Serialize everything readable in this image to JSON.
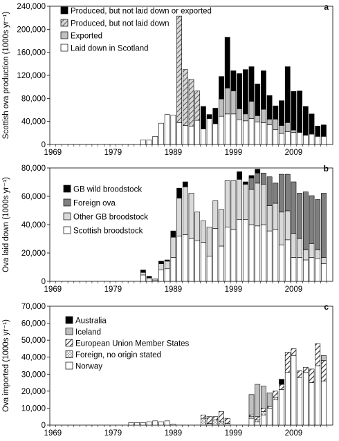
{
  "chart_data": [
    {
      "panel": "a",
      "type": "bar",
      "stacked": true,
      "ylabel": "Scottish ova production (1000s yr⁻¹)",
      "ylim": [
        0,
        240000
      ],
      "yticks": [
        "0",
        "40,000",
        "80,000",
        "120,000",
        "160,000",
        "200,000",
        "240,000"
      ],
      "xticks": [
        "1969",
        "1979",
        "1989",
        "1999",
        "2009"
      ],
      "legend_position": "top-left",
      "categories": [
        1969,
        1970,
        1971,
        1972,
        1973,
        1974,
        1975,
        1976,
        1977,
        1978,
        1979,
        1980,
        1981,
        1982,
        1983,
        1984,
        1985,
        1986,
        1987,
        1988,
        1989,
        1990,
        1991,
        1992,
        1993,
        1994,
        1995,
        1996,
        1997,
        1998,
        1999,
        2000,
        2001,
        2002,
        2003,
        2004,
        2005,
        2006,
        2007,
        2008,
        2009,
        2010,
        2011,
        2012,
        2013,
        2014
      ],
      "series": [
        {
          "name": "Laid down in Scotland",
          "style": "white",
          "values": [
            0,
            0,
            0,
            0,
            0,
            0,
            0,
            0,
            0,
            0,
            0,
            0,
            0,
            0,
            0,
            8000,
            8000,
            14000,
            37000,
            52000,
            51000,
            38000,
            33000,
            32000,
            42000,
            27000,
            45000,
            36000,
            49000,
            53000,
            53000,
            43000,
            41000,
            45000,
            39000,
            38000,
            34000,
            26000,
            19000,
            22000,
            21000,
            21000,
            16000,
            18000,
            14000,
            14000
          ]
        },
        {
          "name": "Exported",
          "style": "gray",
          "values": [
            0,
            0,
            0,
            0,
            0,
            0,
            0,
            0,
            0,
            0,
            0,
            0,
            0,
            0,
            0,
            0,
            0,
            0,
            0,
            0,
            0,
            0,
            0,
            0,
            0,
            0,
            0,
            0,
            30000,
            45000,
            40000,
            19000,
            12000,
            30000,
            11000,
            23000,
            10000,
            18000,
            14000,
            16000,
            4000,
            0,
            0,
            0,
            0,
            0
          ]
        },
        {
          "name": "Produced, but not laid down",
          "style": "hatched",
          "values": [
            0,
            0,
            0,
            0,
            0,
            0,
            0,
            0,
            0,
            0,
            0,
            0,
            0,
            0,
            0,
            0,
            0,
            0,
            0,
            0,
            0,
            185000,
            97000,
            81000,
            51000,
            0,
            0,
            0,
            0,
            0,
            0,
            0,
            0,
            0,
            0,
            0,
            0,
            0,
            0,
            0,
            0,
            0,
            0,
            0,
            0,
            0
          ]
        },
        {
          "name": "Produced, but not laid down or exported",
          "style": "black",
          "values": [
            0,
            0,
            0,
            0,
            0,
            0,
            0,
            0,
            0,
            0,
            0,
            0,
            0,
            0,
            0,
            0,
            0,
            0,
            0,
            0,
            0,
            0,
            0,
            0,
            0,
            39000,
            7000,
            27000,
            39000,
            88000,
            35000,
            61000,
            77000,
            60000,
            55000,
            67000,
            41000,
            23000,
            43000,
            97000,
            67000,
            72000,
            50000,
            35000,
            18000,
            20000
          ]
        }
      ]
    },
    {
      "panel": "b",
      "type": "bar",
      "stacked": true,
      "ylabel": "Ova laid down (1000s yr⁻¹)",
      "ylim": [
        0,
        90000
      ],
      "yticks": [
        "0",
        "20,000",
        "40,000",
        "60,000",
        "80,000"
      ],
      "xticks": [
        "1969",
        "1979",
        "1989",
        "1999",
        "2009"
      ],
      "legend_position": "middle-left",
      "categories": [
        1969,
        1970,
        1971,
        1972,
        1973,
        1974,
        1975,
        1976,
        1977,
        1978,
        1979,
        1980,
        1981,
        1982,
        1983,
        1984,
        1985,
        1986,
        1987,
        1988,
        1989,
        1990,
        1991,
        1992,
        1993,
        1994,
        1995,
        1996,
        1997,
        1998,
        1999,
        2000,
        2001,
        2002,
        2003,
        2004,
        2005,
        2006,
        2007,
        2008,
        2009,
        2010,
        2011,
        2012,
        2013,
        2014
      ],
      "series": [
        {
          "name": "Scottish broodstock",
          "style": "white",
          "values": [
            0,
            0,
            0,
            0,
            0,
            0,
            0,
            0,
            0,
            0,
            0,
            0,
            0,
            0,
            0,
            5000,
            2000,
            1000,
            9000,
            10000,
            19000,
            36000,
            37000,
            34000,
            32000,
            31000,
            20000,
            42000,
            28000,
            43000,
            41000,
            49000,
            49000,
            45000,
            44000,
            45000,
            40000,
            41000,
            29000,
            33000,
            19000,
            19000,
            17000,
            19000,
            18000,
            14000
          ]
        },
        {
          "name": "Other GB broodstock",
          "style": "light",
          "values": [
            0,
            0,
            0,
            0,
            0,
            0,
            0,
            0,
            0,
            0,
            0,
            0,
            0,
            0,
            0,
            2000,
            1000,
            1000,
            5000,
            6000,
            16000,
            30000,
            38000,
            36000,
            23000,
            17000,
            23000,
            22000,
            29000,
            37000,
            39000,
            32000,
            28000,
            28000,
            34000,
            32000,
            20000,
            21000,
            26000,
            23000,
            19000,
            15000,
            8000,
            11000,
            7000,
            5000
          ]
        },
        {
          "name": "Foreign ova",
          "style": "dark",
          "values": [
            0,
            0,
            0,
            0,
            0,
            0,
            0,
            0,
            0,
            0,
            0,
            0,
            0,
            0,
            0,
            0,
            0,
            0,
            0,
            0,
            0,
            0,
            0,
            0,
            0,
            0,
            0,
            0,
            0,
            0,
            0,
            0,
            0,
            9000,
            8000,
            9000,
            23000,
            16000,
            30000,
            29000,
            41000,
            36000,
            46000,
            38000,
            40000,
            51000
          ]
        },
        {
          "name": "GB wild broodstock",
          "style": "black",
          "values": [
            0,
            0,
            0,
            0,
            0,
            0,
            0,
            0,
            0,
            0,
            0,
            0,
            0,
            0,
            0,
            2000,
            1000,
            0,
            2000,
            1000,
            5000,
            8000,
            4000,
            0,
            0,
            0,
            0,
            0,
            0,
            0,
            0,
            6000,
            2000,
            2000,
            3000,
            0,
            0,
            0,
            0,
            0,
            0,
            0,
            0,
            0,
            0,
            0
          ]
        }
      ]
    },
    {
      "panel": "c",
      "type": "bar",
      "stacked": true,
      "ylabel": "Ova imported (1000s yr⁻¹)",
      "ylim": [
        0,
        70000
      ],
      "yticks": [
        "0",
        "10,000",
        "20,000",
        "30,000",
        "40,000",
        "50,000",
        "60,000",
        "70,000"
      ],
      "xticks": [
        "1969",
        "1979",
        "1989",
        "1999",
        "2009"
      ],
      "legend_position": "top-left",
      "categories": [
        1969,
        1970,
        1971,
        1972,
        1973,
        1974,
        1975,
        1976,
        1977,
        1978,
        1979,
        1980,
        1981,
        1982,
        1983,
        1984,
        1985,
        1986,
        1987,
        1988,
        1989,
        1990,
        1991,
        1992,
        1993,
        1994,
        1995,
        1996,
        1997,
        1998,
        1999,
        2000,
        2001,
        2002,
        2003,
        2004,
        2005,
        2006,
        2007,
        2008,
        2009,
        2010,
        2011,
        2012,
        2013,
        2014
      ],
      "series": [
        {
          "name": "Norway",
          "style": "white",
          "values": [
            0,
            0,
            0,
            0,
            0,
            0,
            0,
            0,
            0,
            0,
            0,
            0,
            0,
            1500,
            1500,
            1500,
            2000,
            2500,
            2000,
            2500,
            500,
            0,
            0,
            0,
            0,
            0,
            0,
            0,
            0,
            0,
            0,
            0,
            0,
            4000,
            2000,
            6000,
            10000,
            15000,
            21000,
            31000,
            41000,
            28000,
            31000,
            25000,
            35000,
            26000
          ]
        },
        {
          "name": "Foreign, no origin stated",
          "style": "dotted",
          "values": [
            0,
            0,
            0,
            0,
            0,
            0,
            0,
            0,
            0,
            0,
            0,
            0,
            0,
            0,
            0,
            0,
            0,
            0,
            0,
            0,
            0,
            0,
            0,
            0,
            0,
            4000,
            1000,
            3000,
            2000,
            1000,
            0,
            0,
            0,
            1000,
            1000,
            2000,
            0,
            1000,
            0,
            0,
            0,
            0,
            0,
            0,
            0,
            0
          ]
        },
        {
          "name": "European Union Member States",
          "style": "hatched",
          "values": [
            0,
            0,
            0,
            0,
            0,
            0,
            0,
            0,
            0,
            0,
            0,
            0,
            0,
            0,
            0,
            0,
            0,
            0,
            0,
            0,
            0,
            0,
            0,
            0,
            0,
            2000,
            4000,
            2000,
            6000,
            3000,
            0,
            0,
            0,
            1000,
            2000,
            2000,
            1000,
            4000,
            3000,
            12000,
            4000,
            4000,
            3000,
            8000,
            13000,
            12000
          ]
        },
        {
          "name": "Iceland",
          "style": "gray",
          "values": [
            0,
            0,
            0,
            0,
            0,
            0,
            0,
            0,
            0,
            0,
            0,
            0,
            0,
            0,
            0,
            0,
            0,
            0,
            0,
            0,
            0,
            0,
            0,
            0,
            0,
            0,
            0,
            0,
            0,
            0,
            0,
            0,
            0,
            12000,
            19000,
            13000,
            8000,
            0,
            0,
            0,
            0,
            0,
            0,
            0,
            0,
            3000
          ]
        },
        {
          "name": "Australia",
          "style": "black",
          "values": [
            0,
            0,
            0,
            0,
            0,
            0,
            0,
            0,
            0,
            0,
            0,
            0,
            0,
            0,
            0,
            0,
            0,
            0,
            0,
            0,
            0,
            0,
            0,
            0,
            0,
            0,
            0,
            0,
            0,
            0,
            0,
            0,
            0,
            0,
            0,
            0,
            0,
            0,
            3000,
            0,
            0,
            0,
            0,
            0,
            0,
            0
          ]
        }
      ]
    }
  ]
}
